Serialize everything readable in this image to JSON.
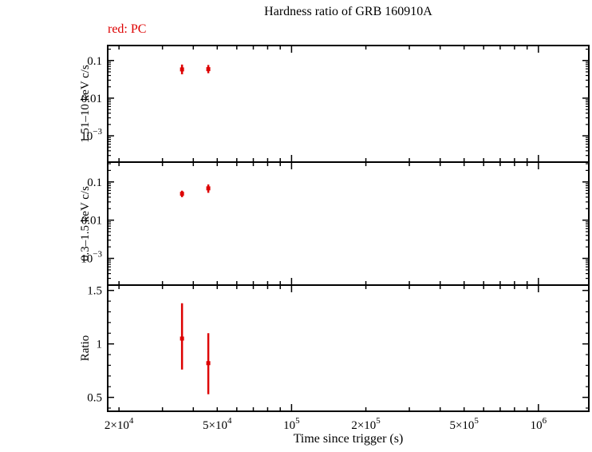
{
  "title": "Hardness ratio of GRB 160910A",
  "legend": "red: PC",
  "xlabel": "Time since trigger (s)",
  "colors": {
    "data": "#dd0000",
    "axis": "#000000"
  },
  "chart_data": {
    "type": "scatter",
    "title": "Hardness ratio of GRB 160910A",
    "xlabel": "Time since trigger (s)",
    "x_scale": "log",
    "xlim": [
      18000,
      1600000
    ],
    "grid": false,
    "legend_position": "top-left",
    "series_color": "red",
    "series_mode": "PC",
    "x": [
      36000,
      46000
    ],
    "xticks": [
      {
        "value": 20000,
        "base": "2×10",
        "exp": "4"
      },
      {
        "value": 50000,
        "base": "5×10",
        "exp": "4"
      },
      {
        "value": 100000,
        "base": "10",
        "exp": "5"
      },
      {
        "value": 200000,
        "base": "2×10",
        "exp": "5"
      },
      {
        "value": 500000,
        "base": "5×10",
        "exp": "5"
      },
      {
        "value": 1000000,
        "base": "10",
        "exp": "6"
      }
    ],
    "panels": [
      {
        "ylabel": "1.51–10 keV c/s",
        "scale": "log",
        "ylim": [
          0.0002,
          0.25
        ],
        "yticks": [
          {
            "value": 0.1,
            "base": "0.1"
          },
          {
            "value": 0.01,
            "base": "0.01"
          },
          {
            "value": 0.001,
            "base": "10",
            "exp": "−3"
          }
        ],
        "values": [
          0.058,
          0.059
        ],
        "err_up": [
          0.02,
          0.017
        ],
        "err_down": [
          0.015,
          0.013
        ]
      },
      {
        "ylabel": "0.3–1.5 keV c/s",
        "scale": "log",
        "ylim": [
          0.0002,
          0.33
        ],
        "yticks": [
          {
            "value": 0.1,
            "base": "0.1"
          },
          {
            "value": 0.01,
            "base": "0.01"
          },
          {
            "value": 0.001,
            "base": "10",
            "exp": "−3"
          }
        ],
        "values": [
          0.049,
          0.068
        ],
        "err_up": [
          0.01,
          0.018
        ],
        "err_down": [
          0.009,
          0.016
        ]
      },
      {
        "ylabel": "Ratio",
        "scale": "linear",
        "ylim": [
          0.37,
          1.55
        ],
        "yticks": [
          {
            "value": 1.5,
            "base": "1.5"
          },
          {
            "value": 1.0,
            "base": "1"
          },
          {
            "value": 0.5,
            "base": "0.5"
          }
        ],
        "values": [
          1.05,
          0.82
        ],
        "err_up": [
          0.33,
          0.28
        ],
        "err_down": [
          0.29,
          0.29
        ]
      }
    ]
  }
}
